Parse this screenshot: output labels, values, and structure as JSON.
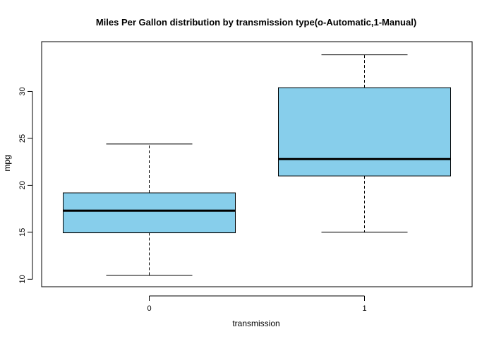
{
  "chart_data": {
    "type": "boxplot",
    "title": "Miles Per Gallon distribution by transmission type(o-Automatic,1-Manual)",
    "xlabel": "transmission",
    "ylabel": "mpg",
    "ylim": [
      9.2,
      35.3
    ],
    "yticks": [
      10,
      15,
      20,
      25,
      30
    ],
    "categories": [
      "0",
      "1"
    ],
    "boxes": [
      {
        "category": "0",
        "min": 10.4,
        "q1": 14.95,
        "median": 17.3,
        "q3": 19.2,
        "max": 24.4
      },
      {
        "category": "1",
        "min": 15.0,
        "q1": 21.0,
        "median": 22.8,
        "q3": 30.4,
        "max": 33.9
      }
    ],
    "box_color": "#87CEEB",
    "grid": false,
    "legend": "none"
  }
}
